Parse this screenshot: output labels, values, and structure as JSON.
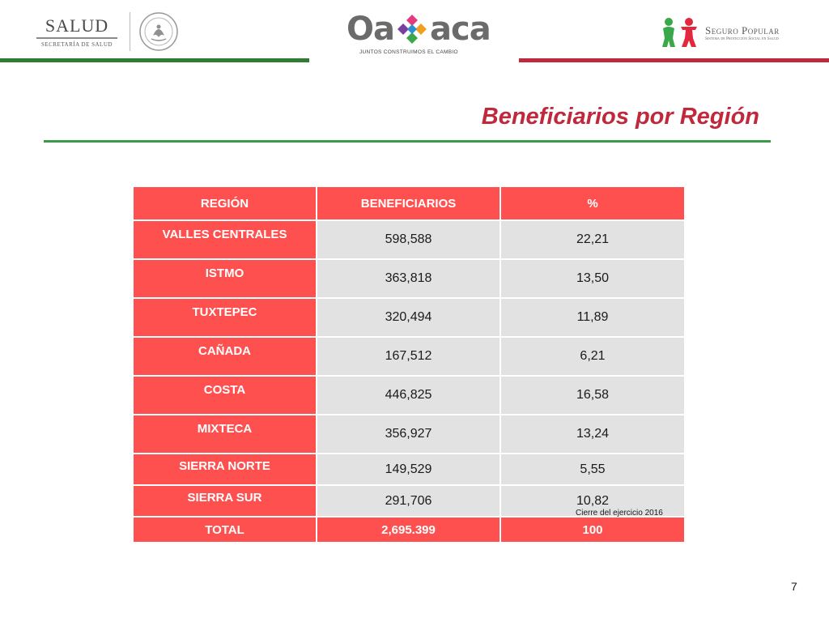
{
  "header": {
    "salud": {
      "name": "SALUD",
      "subtitle": "SECRETARÍA DE SALUD",
      "seal_text": "ESTADOS UNIDOS MEXICANOS"
    },
    "oaxaca": {
      "name_left": "Oa",
      "name_right": "aca",
      "tagline": "JUNTOS CONSTRUIMOS EL CAMBIO"
    },
    "seguro_popular": {
      "name": "Seguro Popular",
      "subtitle": "Sistema de Protección Social en Salud"
    },
    "colors": {
      "green": "#2e7d32",
      "red": "#c0283c",
      "table_red": "#ff5050",
      "cell_gray": "#e2e2e2"
    }
  },
  "title": "Beneficiarios por Región",
  "table": {
    "headers": [
      "REGIÓN",
      "BENEFICIARIOS",
      "%"
    ],
    "rows": [
      {
        "region": "VALLES CENTRALES",
        "beneficiarios": "598,588",
        "pct": "22,21"
      },
      {
        "region": "ISTMO",
        "beneficiarios": "363,818",
        "pct": "13,50"
      },
      {
        "region": "TUXTEPEC",
        "beneficiarios": "320,494",
        "pct": "11,89"
      },
      {
        "region": "CAÑADA",
        "beneficiarios": "167,512",
        "pct": "6,21"
      },
      {
        "region": "COSTA",
        "beneficiarios": "446,825",
        "pct": "16,58"
      },
      {
        "region": "MIXTECA",
        "beneficiarios": "356,927",
        "pct": "13,24"
      },
      {
        "region": "SIERRA NORTE",
        "beneficiarios": "149,529",
        "pct": "5,55"
      },
      {
        "region": "SIERRA SUR",
        "beneficiarios": "291,706",
        "pct": "10,82"
      }
    ],
    "total": {
      "region": "TOTAL",
      "beneficiarios": "2,695.399",
      "pct": "100"
    }
  },
  "note": "Cierre del ejercicio 2016",
  "page_number": "7"
}
